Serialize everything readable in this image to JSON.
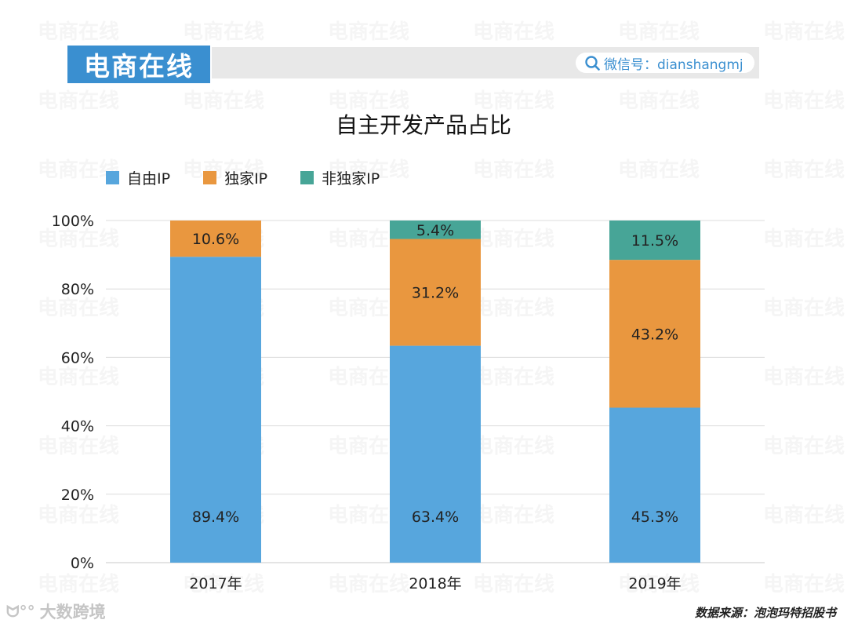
{
  "header": {
    "brand": "电商在线",
    "wechat": "微信号：dianshangmj",
    "watermark_text": "电商在线"
  },
  "footer": {
    "source": "数据来源：泡泡玛特招股书",
    "corner_logo": "大数跨境"
  },
  "chart_data": {
    "type": "bar",
    "stacked": true,
    "title": "自主开发产品占比",
    "categories": [
      "2017年",
      "2018年",
      "2019年"
    ],
    "series": [
      {
        "name": "自由IP",
        "color": "#57a6dd",
        "values": [
          89.4,
          63.4,
          45.3
        ],
        "labels": [
          "89.4%",
          "63.4%",
          "45.3%"
        ]
      },
      {
        "name": "独家IP",
        "color": "#e9973f",
        "values": [
          10.6,
          31.2,
          43.2
        ],
        "labels": [
          "10.6%",
          "31.2%",
          "43.2%"
        ]
      },
      {
        "name": "非独家IP",
        "color": "#47a597",
        "values": [
          0,
          5.4,
          11.5
        ],
        "labels": [
          "",
          "5.4%",
          "11.5%"
        ]
      }
    ],
    "yticks": [
      "0%",
      "20%",
      "40%",
      "60%",
      "80%",
      "100%"
    ],
    "ylim": [
      0,
      100
    ],
    "grid": true,
    "legend_position": "top-left"
  }
}
